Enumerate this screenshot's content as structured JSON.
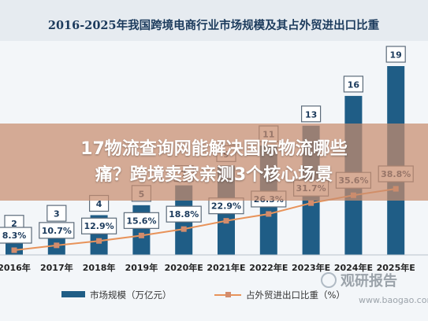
{
  "overlay": {
    "line1": "17物流查询网能解决国际物流哪些",
    "line2": "痛？跨境卖家亲测3个核心场景"
  },
  "watermark": {
    "brand": "观研报告",
    "url": "www.baogao.com"
  },
  "colors": {
    "bar": "#1f5d86",
    "line": "#e8935a",
    "title_bar": "#e6ebf0"
  },
  "chart_data": {
    "type": "bar",
    "title": "2016-2025年我国跨境电商行业市场规模及其占外贸进出口比重",
    "categories": [
      "2016年",
      "2017年",
      "2018年",
      "2019年",
      "2020年E",
      "2021年E",
      "2022年E",
      "2023年E",
      "2024年E",
      "2025年E"
    ],
    "series": [
      {
        "name": "市场规模（万亿元）",
        "type": "bar",
        "values": [
          2,
          3,
          4,
          5,
          7,
          9,
          11,
          13,
          16,
          19
        ],
        "labels": [
          "2",
          "3",
          "4",
          "5",
          "7",
          "9",
          "11",
          "13",
          "16",
          "19"
        ]
      },
      {
        "name": "占外贸进出口比重（%）",
        "type": "line",
        "values": [
          8.3,
          10.7,
          12.9,
          15.6,
          18.8,
          22.9,
          26.3,
          31.7,
          35.6,
          38.8
        ],
        "labels": [
          "8.3%",
          "10.7%",
          "12.9%",
          "15.6%",
          "18.8%",
          "22.9%",
          "26.3%",
          "31.7%",
          "35.6%",
          "38.8%"
        ]
      }
    ],
    "y_bar_range": [
      0,
      20
    ],
    "y_line_range": [
      0,
      100
    ],
    "grid": false,
    "legend": "bottom"
  }
}
